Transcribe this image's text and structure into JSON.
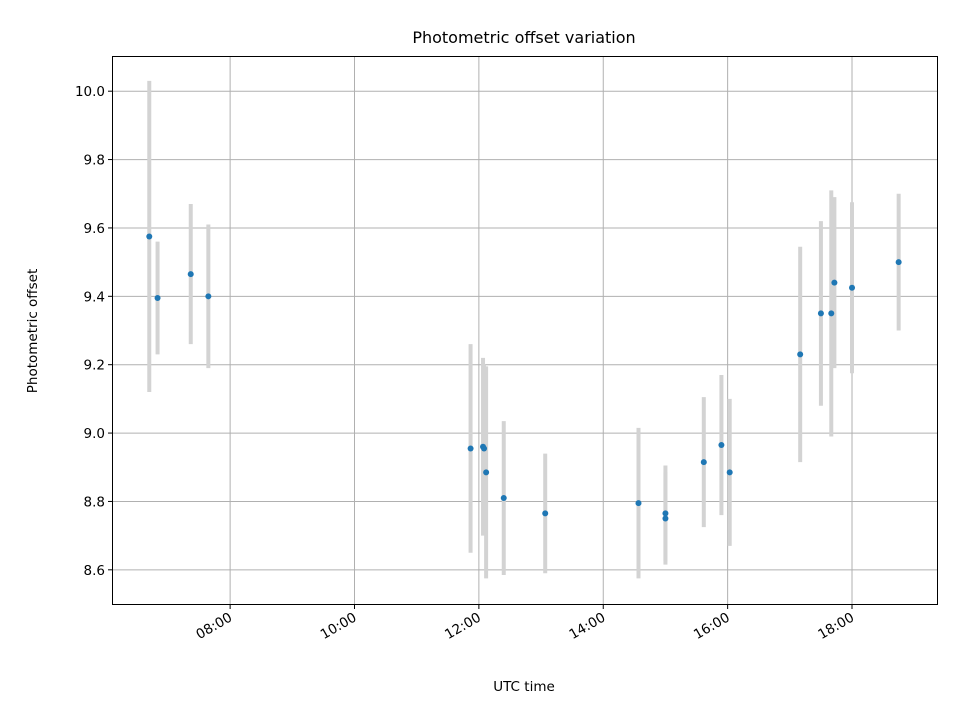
{
  "chart_data": {
    "type": "scatter",
    "title": "Photometric offset variation",
    "xlabel": "UTC time",
    "ylabel": "Photometric offset",
    "x_ticks": [
      "08:00",
      "10:00",
      "12:00",
      "14:00",
      "16:00",
      "18:00"
    ],
    "y_ticks": [
      "8.6",
      "8.8",
      "9.0",
      "9.2",
      "9.4",
      "9.6",
      "9.8",
      "10.0"
    ],
    "xlim": [
      "06:07",
      "19:22"
    ],
    "ylim": [
      8.5,
      10.1
    ],
    "grid": true,
    "legend": "none",
    "colors": {
      "points": "#1f77b4",
      "errorbars": "#d3d3d3",
      "grid": "#b0b0b0"
    },
    "series": [
      {
        "points": [
          {
            "x": "06:42",
            "y": 9.575,
            "yerr": 0.455
          },
          {
            "x": "06:50",
            "y": 9.395,
            "yerr": 0.165
          },
          {
            "x": "07:22",
            "y": 9.465,
            "yerr": 0.205
          },
          {
            "x": "07:39",
            "y": 9.4,
            "yerr": 0.21
          },
          {
            "x": "11:52",
            "y": 8.955,
            "yerr": 0.305
          },
          {
            "x": "12:04",
            "y": 8.96,
            "yerr": 0.26
          },
          {
            "x": "12:05",
            "y": 8.955,
            "yerr": 0.245
          },
          {
            "x": "12:07",
            "y": 8.885,
            "yerr": 0.31
          },
          {
            "x": "12:24",
            "y": 8.81,
            "yerr": 0.225
          },
          {
            "x": "13:04",
            "y": 8.765,
            "yerr": 0.175
          },
          {
            "x": "14:34",
            "y": 8.795,
            "yerr": 0.22
          },
          {
            "x": "15:00",
            "y": 8.765,
            "yerr": 0.14
          },
          {
            "x": "15:00",
            "y": 8.75,
            "yerr": 0.135
          },
          {
            "x": "15:37",
            "y": 8.915,
            "yerr": 0.19
          },
          {
            "x": "15:54",
            "y": 8.965,
            "yerr": 0.205
          },
          {
            "x": "16:02",
            "y": 8.885,
            "yerr": 0.215
          },
          {
            "x": "17:10",
            "y": 9.23,
            "yerr": 0.315
          },
          {
            "x": "17:30",
            "y": 9.35,
            "yerr": 0.27
          },
          {
            "x": "17:40",
            "y": 9.35,
            "yerr": 0.36
          },
          {
            "x": "17:43",
            "y": 9.44,
            "yerr": 0.25
          },
          {
            "x": "18:00",
            "y": 9.425,
            "yerr": 0.25
          },
          {
            "x": "18:45",
            "y": 9.5,
            "yerr": 0.2
          }
        ]
      }
    ]
  }
}
